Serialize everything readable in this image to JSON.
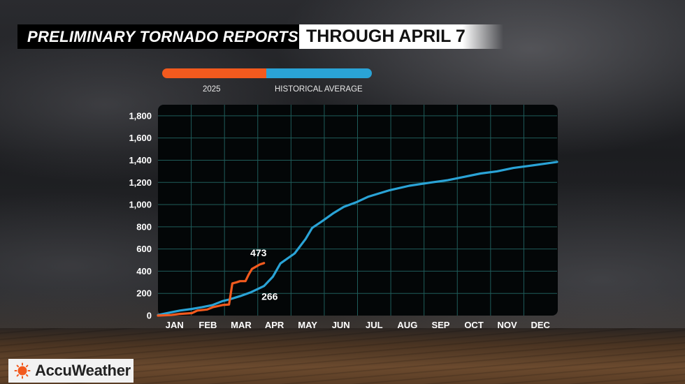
{
  "header": {
    "title": "PRELIMINARY TORNADO REPORTS",
    "subtitle": "THROUGH APRIL 7"
  },
  "legend": {
    "items": [
      {
        "label": "2025",
        "color": "#f25a1e"
      },
      {
        "label": "HISTORICAL AVERAGE",
        "color": "#2aa3d6"
      }
    ]
  },
  "brand": {
    "name": "AccuWeather",
    "icon": "sun-logo-icon",
    "color": "#f25a1e"
  },
  "chart_data": {
    "type": "line",
    "x_unit": "day of year",
    "xlim": [
      0,
      365
    ],
    "ylim": [
      0,
      1900
    ],
    "y_ticks": [
      0,
      200,
      400,
      600,
      800,
      1000,
      1200,
      1400,
      1600,
      1800
    ],
    "y_tick_labels": [
      "0",
      "200",
      "400",
      "600",
      "800",
      "1,000",
      "1,200",
      "1,400",
      "1,600",
      "1,800"
    ],
    "month_labels": [
      "JAN",
      "FEB",
      "MAR",
      "APR",
      "MAY",
      "JUN",
      "JUL",
      "AUG",
      "SEP",
      "OCT",
      "NOV",
      "DEC"
    ],
    "grid": true,
    "series": [
      {
        "name": "2025",
        "color": "#f25a1e",
        "end_label": "473",
        "points": [
          [
            0,
            0
          ],
          [
            12,
            5
          ],
          [
            20,
            15
          ],
          [
            31,
            22
          ],
          [
            36,
            45
          ],
          [
            45,
            55
          ],
          [
            50,
            75
          ],
          [
            59,
            95
          ],
          [
            65,
            100
          ],
          [
            68,
            290
          ],
          [
            72,
            300
          ],
          [
            75,
            310
          ],
          [
            80,
            310
          ],
          [
            83,
            370
          ],
          [
            86,
            420
          ],
          [
            93,
            460
          ],
          [
            97,
            473
          ]
        ]
      },
      {
        "name": "HISTORICAL AVERAGE",
        "color": "#2aa3d6",
        "end_label": "266",
        "label_x": 97,
        "points": [
          [
            0,
            5
          ],
          [
            10,
            25
          ],
          [
            20,
            45
          ],
          [
            31,
            60
          ],
          [
            40,
            75
          ],
          [
            50,
            95
          ],
          [
            59,
            130
          ],
          [
            65,
            145
          ],
          [
            75,
            175
          ],
          [
            85,
            210
          ],
          [
            97,
            266
          ],
          [
            105,
            350
          ],
          [
            112,
            470
          ],
          [
            125,
            560
          ],
          [
            135,
            690
          ],
          [
            141,
            790
          ],
          [
            150,
            850
          ],
          [
            160,
            920
          ],
          [
            170,
            980
          ],
          [
            181,
            1020
          ],
          [
            192,
            1070
          ],
          [
            212,
            1130
          ],
          [
            230,
            1170
          ],
          [
            250,
            1200
          ],
          [
            265,
            1220
          ],
          [
            280,
            1250
          ],
          [
            295,
            1280
          ],
          [
            310,
            1300
          ],
          [
            325,
            1330
          ],
          [
            340,
            1350
          ],
          [
            355,
            1370
          ],
          [
            365,
            1385
          ]
        ]
      }
    ]
  }
}
